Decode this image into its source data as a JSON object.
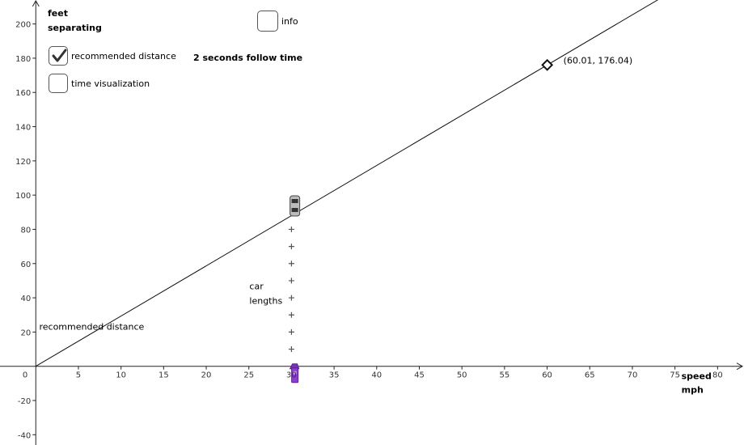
{
  "controls": {
    "recommended_checkbox": {
      "label": "recommended distance",
      "checked": true
    },
    "time_checkbox": {
      "label": "time visualization",
      "checked": false
    },
    "info_checkbox": {
      "label": "info",
      "checked": false
    },
    "follow_time_text": "2 seconds follow time"
  },
  "chart_data": {
    "type": "line",
    "title": "",
    "ylabel_lines": [
      "feet",
      "separating"
    ],
    "xlabel_lines": [
      "speed",
      "mph"
    ],
    "xlim": [
      -4.2,
      83.1
    ],
    "ylim": [
      -46,
      214
    ],
    "x_ticks": [
      5,
      10,
      15,
      20,
      25,
      30,
      35,
      40,
      45,
      50,
      55,
      60,
      65,
      70,
      75,
      80
    ],
    "y_ticks": [
      -40,
      -20,
      20,
      40,
      60,
      80,
      100,
      120,
      140,
      160,
      180,
      200
    ],
    "origin_label": "0",
    "series": [
      {
        "name": "recommended distance",
        "slope": 2.9333,
        "x_range": [
          0,
          83.1
        ]
      }
    ],
    "points": [
      {
        "x": 60.01,
        "y": 176.04,
        "label": "(60.01, 176.04)"
      }
    ],
    "car_lengths": {
      "label_lines": [
        "car",
        "lengths"
      ],
      "x": 30,
      "y_values": [
        10,
        20,
        30,
        40,
        50,
        60,
        70,
        80
      ]
    },
    "car_position": {
      "x": 30.4,
      "y": 89.2
    },
    "speed_slider_x": 30.4,
    "grid": false
  }
}
